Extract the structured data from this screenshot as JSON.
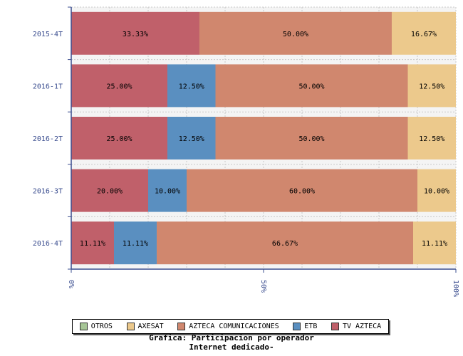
{
  "chart_data": {
    "type": "bar",
    "orientation": "horizontal",
    "stacked": true,
    "categories": [
      "2015-4T",
      "2016-1T",
      "2016-2T",
      "2016-3T",
      "2016-4T"
    ],
    "series": [
      {
        "name": "TV AZTECA",
        "color": "#c0606a",
        "values": [
          33.33,
          25.0,
          25.0,
          20.0,
          11.11
        ],
        "labels": [
          "33.33%",
          "25.00%",
          "25.00%",
          "20.00%",
          "11.11%"
        ]
      },
      {
        "name": "ETB",
        "color": "#5a8fc0",
        "values": [
          0,
          12.5,
          12.5,
          10.0,
          11.11
        ],
        "labels": [
          "",
          "12.50%",
          "12.50%",
          "10.00%",
          "11.11%"
        ]
      },
      {
        "name": "AZTECA COMUNICACIONES",
        "color": "#d0876e",
        "values": [
          50.0,
          50.0,
          50.0,
          60.0,
          66.67
        ],
        "labels": [
          "50.00%",
          "50.00%",
          "50.00%",
          "60.00%",
          "66.67%"
        ]
      },
      {
        "name": "AXESAT",
        "color": "#ecc98c",
        "values": [
          16.67,
          12.5,
          12.5,
          10.0,
          11.11
        ],
        "labels": [
          "16.67%",
          "12.50%",
          "12.50%",
          "10.00%",
          "11.11%"
        ]
      },
      {
        "name": "OTROS",
        "color": "#a6c596",
        "values": [
          0,
          0,
          0,
          0,
          0
        ],
        "labels": [
          "",
          "",
          "",
          "",
          ""
        ]
      }
    ],
    "xlim": [
      0,
      100
    ],
    "xticks": [
      "0%",
      "50%",
      "100%"
    ],
    "grid": true,
    "legend_position": "bottom",
    "legend_order": [
      "OTROS",
      "AXESAT",
      "AZTECA COMUNICACIONES",
      "ETB",
      "TV AZTECA"
    ],
    "title": "Grafica: Participacion por operador",
    "subtitle": "Internet dedicado-"
  },
  "colors": {
    "axis": "#3a4d8f",
    "grid": "#c8c8c8",
    "band": "#f4f4f4"
  }
}
